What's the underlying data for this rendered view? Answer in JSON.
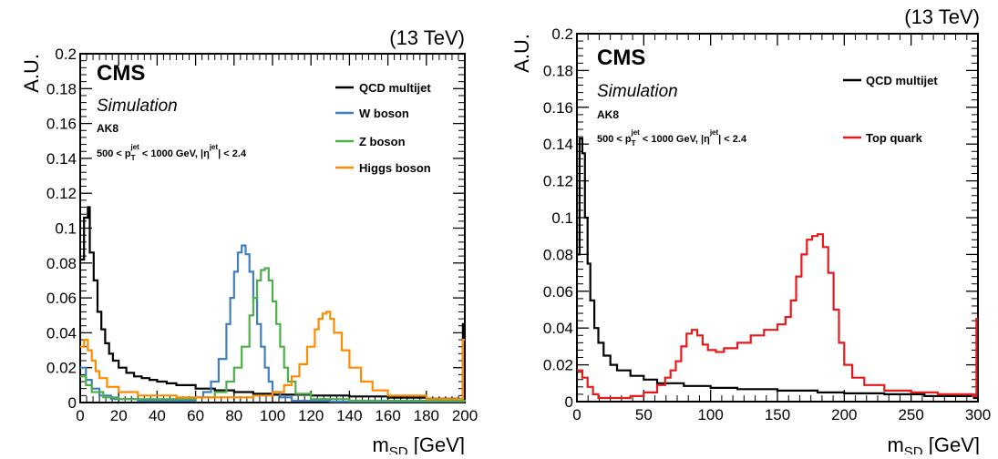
{
  "chart_data": [
    {
      "type": "line",
      "step": true,
      "energy_label": "(13 TeV)",
      "experiment": "CMS",
      "subtitle": "Simulation",
      "jet_algo": "AK8",
      "kinematic_cut": {
        "prefix": "500 < p",
        "sub": "T",
        "sup": "jet",
        "middle": " < 1000 GeV, |η",
        "sup2": "jet",
        "suffix": "| < 2.4"
      },
      "xlabel": {
        "main": "m",
        "sub": "SD",
        "unit": " [GeV]"
      },
      "ylabel": "A.U.",
      "xlim": [
        0,
        200
      ],
      "ylim": [
        0,
        0.2
      ],
      "xticks": [
        "0",
        "20",
        "40",
        "60",
        "80",
        "100",
        "120",
        "140",
        "160",
        "180",
        "200"
      ],
      "yticks": [
        "0",
        "0.02",
        "0.04",
        "0.06",
        "0.08",
        "0.1",
        "0.12",
        "0.14",
        "0.16",
        "0.18",
        "0.2"
      ],
      "legend_position": "top-right",
      "series": [
        {
          "name": "QCD multijet",
          "color": "#000000",
          "points": [
            [
              0,
              0.082
            ],
            [
              2,
              0.106
            ],
            [
              4,
              0.112
            ],
            [
              5,
              0.086
            ],
            [
              7,
              0.07
            ],
            [
              9,
              0.052
            ],
            [
              11,
              0.042
            ],
            [
              13,
              0.034
            ],
            [
              15,
              0.028
            ],
            [
              17,
              0.024
            ],
            [
              20,
              0.02
            ],
            [
              24,
              0.017
            ],
            [
              28,
              0.015
            ],
            [
              32,
              0.014
            ],
            [
              36,
              0.013
            ],
            [
              40,
              0.012
            ],
            [
              45,
              0.011
            ],
            [
              50,
              0.01
            ],
            [
              60,
              0.008
            ],
            [
              70,
              0.007
            ],
            [
              80,
              0.006
            ],
            [
              90,
              0.005
            ],
            [
              100,
              0.0045
            ],
            [
              120,
              0.004
            ],
            [
              140,
              0.0035
            ],
            [
              160,
              0.0028
            ],
            [
              180,
              0.0022
            ],
            [
              197,
              0.002
            ],
            [
              199,
              0.045
            ],
            [
              200,
              0.045
            ]
          ]
        },
        {
          "name": "W boson",
          "color": "#3f7fbf",
          "points": [
            [
              0,
              0.02
            ],
            [
              3,
              0.013
            ],
            [
              6,
              0.008
            ],
            [
              10,
              0.004
            ],
            [
              16,
              0.002
            ],
            [
              30,
              0.001
            ],
            [
              50,
              0.001
            ],
            [
              60,
              0.003
            ],
            [
              64,
              0.006
            ],
            [
              68,
              0.012
            ],
            [
              72,
              0.025
            ],
            [
              76,
              0.045
            ],
            [
              78,
              0.06
            ],
            [
              80,
              0.075
            ],
            [
              82,
              0.086
            ],
            [
              84,
              0.09
            ],
            [
              86,
              0.085
            ],
            [
              88,
              0.075
            ],
            [
              90,
              0.06
            ],
            [
              92,
              0.045
            ],
            [
              94,
              0.032
            ],
            [
              96,
              0.02
            ],
            [
              98,
              0.012
            ],
            [
              100,
              0.006
            ],
            [
              104,
              0.003
            ],
            [
              110,
              0.001
            ],
            [
              130,
              0.0005
            ],
            [
              200,
              0.0005
            ]
          ]
        },
        {
          "name": "Z boson",
          "color": "#4daf4a",
          "points": [
            [
              0,
              0.015
            ],
            [
              3,
              0.01
            ],
            [
              6,
              0.006
            ],
            [
              12,
              0.003
            ],
            [
              20,
              0.002
            ],
            [
              50,
              0.002
            ],
            [
              60,
              0.003
            ],
            [
              70,
              0.006
            ],
            [
              76,
              0.012
            ],
            [
              80,
              0.02
            ],
            [
              84,
              0.032
            ],
            [
              88,
              0.05
            ],
            [
              90,
              0.06
            ],
            [
              92,
              0.07
            ],
            [
              94,
              0.076
            ],
            [
              96,
              0.077
            ],
            [
              98,
              0.07
            ],
            [
              100,
              0.058
            ],
            [
              102,
              0.045
            ],
            [
              104,
              0.032
            ],
            [
              106,
              0.02
            ],
            [
              108,
              0.012
            ],
            [
              112,
              0.005
            ],
            [
              120,
              0.002
            ],
            [
              140,
              0.001
            ],
            [
              200,
              0.0005
            ]
          ]
        },
        {
          "name": "Higgs boson",
          "color": "#ff8c00",
          "points": [
            [
              0,
              0.032
            ],
            [
              2,
              0.036
            ],
            [
              4,
              0.03
            ],
            [
              6,
              0.024
            ],
            [
              8,
              0.018
            ],
            [
              10,
              0.014
            ],
            [
              14,
              0.009
            ],
            [
              20,
              0.006
            ],
            [
              30,
              0.004
            ],
            [
              50,
              0.003
            ],
            [
              70,
              0.003
            ],
            [
              90,
              0.004
            ],
            [
              100,
              0.006
            ],
            [
              106,
              0.01
            ],
            [
              110,
              0.015
            ],
            [
              114,
              0.022
            ],
            [
              118,
              0.032
            ],
            [
              122,
              0.042
            ],
            [
              124,
              0.048
            ],
            [
              126,
              0.051
            ],
            [
              128,
              0.052
            ],
            [
              130,
              0.048
            ],
            [
              132,
              0.04
            ],
            [
              136,
              0.03
            ],
            [
              140,
              0.02
            ],
            [
              146,
              0.012
            ],
            [
              152,
              0.007
            ],
            [
              160,
              0.004
            ],
            [
              180,
              0.002
            ],
            [
              197,
              0.002
            ],
            [
              199,
              0.036
            ],
            [
              200,
              0.036
            ]
          ]
        }
      ]
    },
    {
      "type": "line",
      "step": true,
      "energy_label": "(13 TeV)",
      "experiment": "CMS",
      "subtitle": "Simulation",
      "jet_algo": "AK8",
      "kinematic_cut": {
        "prefix": "500 < p",
        "sub": "T",
        "sup": "jet",
        "middle": " < 1000 GeV, |η",
        "sup2": "jet",
        "suffix": "| < 2.4"
      },
      "xlabel": {
        "main": "m",
        "sub": "SD",
        "unit": " [GeV]"
      },
      "ylabel": "A.U.",
      "xlim": [
        0,
        300
      ],
      "ylim": [
        0,
        0.2
      ],
      "xticks": [
        "0",
        "50",
        "100",
        "150",
        "200",
        "250",
        "300"
      ],
      "yticks": [
        "0",
        "0.02",
        "0.04",
        "0.06",
        "0.08",
        "0.1",
        "0.12",
        "0.14",
        "0.16",
        "0.18",
        "0.2"
      ],
      "legend_position": "top-right",
      "series": [
        {
          "name": "QCD multijet",
          "color": "#000000",
          "points": [
            [
              0,
              0.08
            ],
            [
              2,
              0.143
            ],
            [
              4,
              0.135
            ],
            [
              6,
              0.1
            ],
            [
              8,
              0.075
            ],
            [
              10,
              0.055
            ],
            [
              13,
              0.04
            ],
            [
              16,
              0.032
            ],
            [
              20,
              0.025
            ],
            [
              25,
              0.02
            ],
            [
              30,
              0.017
            ],
            [
              40,
              0.014
            ],
            [
              50,
              0.012
            ],
            [
              60,
              0.01
            ],
            [
              80,
              0.0085
            ],
            [
              100,
              0.0075
            ],
            [
              120,
              0.0068
            ],
            [
              150,
              0.006
            ],
            [
              180,
              0.005
            ],
            [
              200,
              0.0045
            ],
            [
              230,
              0.004
            ],
            [
              260,
              0.003
            ],
            [
              297,
              0.002
            ],
            [
              299,
              0.045
            ],
            [
              300,
              0.045
            ]
          ]
        },
        {
          "name": "Top quark",
          "color": "#e41a1c",
          "points": [
            [
              0,
              0.017
            ],
            [
              4,
              0.013
            ],
            [
              8,
              0.008
            ],
            [
              12,
              0.004
            ],
            [
              16,
              0.002
            ],
            [
              20,
              0.002
            ],
            [
              30,
              0.002
            ],
            [
              40,
              0.003
            ],
            [
              50,
              0.005
            ],
            [
              60,
              0.009
            ],
            [
              66,
              0.013
            ],
            [
              70,
              0.017
            ],
            [
              74,
              0.022
            ],
            [
              78,
              0.03
            ],
            [
              82,
              0.037
            ],
            [
              86,
              0.039
            ],
            [
              90,
              0.036
            ],
            [
              94,
              0.031
            ],
            [
              98,
              0.028
            ],
            [
              104,
              0.027
            ],
            [
              110,
              0.029
            ],
            [
              120,
              0.032
            ],
            [
              130,
              0.036
            ],
            [
              140,
              0.039
            ],
            [
              150,
              0.042
            ],
            [
              156,
              0.046
            ],
            [
              160,
              0.055
            ],
            [
              164,
              0.068
            ],
            [
              168,
              0.08
            ],
            [
              172,
              0.088
            ],
            [
              176,
              0.09
            ],
            [
              180,
              0.091
            ],
            [
              184,
              0.084
            ],
            [
              188,
              0.07
            ],
            [
              192,
              0.05
            ],
            [
              196,
              0.032
            ],
            [
              200,
              0.02
            ],
            [
              206,
              0.013
            ],
            [
              215,
              0.009
            ],
            [
              230,
              0.006
            ],
            [
              250,
              0.005
            ],
            [
              270,
              0.004
            ],
            [
              296,
              0.003
            ],
            [
              299,
              0.045
            ],
            [
              300,
              0.045
            ]
          ]
        }
      ]
    }
  ]
}
